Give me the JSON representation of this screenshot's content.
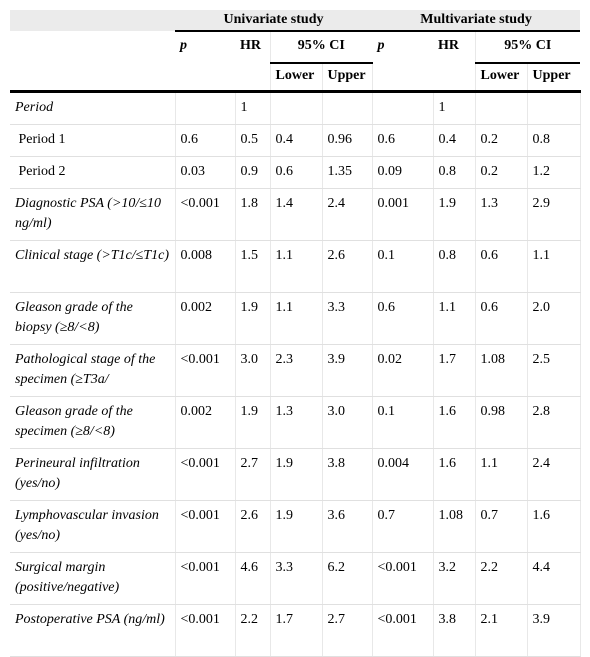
{
  "header": {
    "groups": [
      "Univariate study",
      "Multivariate study"
    ],
    "p": "p",
    "hr": "HR",
    "ci": "95% CI",
    "lower": "Lower",
    "upper": "Upper"
  },
  "rows": [
    {
      "italic": true,
      "cells": [
        "Period",
        null,
        "1",
        null,
        null,
        null,
        "1",
        null,
        null
      ]
    },
    {
      "italic": false,
      "cells": [
        " Period 1",
        "0.6",
        "0.5",
        "0.4",
        "0.96",
        "0.6",
        "0.4",
        "0.2",
        "0.8"
      ]
    },
    {
      "italic": false,
      "cells": [
        " Period 2",
        "0.03",
        "0.9",
        "0.6",
        "1.35",
        "0.09",
        "0.8",
        "0.2",
        "1.2"
      ]
    },
    {
      "italic": true,
      "cells": [
        "Diagnostic PSA (>10/≤10 ng/ml)",
        "<0.001",
        "1.8",
        "1.4",
        "2.4",
        "0.001",
        "1.9",
        "1.3",
        "2.9"
      ]
    },
    {
      "italic": true,
      "cells": [
        "Clinical stage (>T1c/≤T1c)",
        "0.008",
        "1.5",
        "1.1",
        "2.6",
        "0.1",
        "0.8",
        "0.6",
        "1.1"
      ]
    },
    {
      "italic": true,
      "cells": [
        "Gleason grade of the biopsy (≥8/<8)",
        "0.002",
        "1.9",
        "1.1",
        "3.3",
        "0.6",
        "1.1",
        "0.6",
        "2.0"
      ]
    },
    {
      "italic": true,
      "cells": [
        "Pathological stage of the specimen (≥T3a/",
        "<0.001",
        "3.0",
        "2.3",
        "3.9",
        "0.02",
        "1.7",
        "1.08",
        "2.5"
      ]
    },
    {
      "italic": true,
      "cells": [
        "Gleason grade of the specimen (≥8/<8)",
        "0.002",
        "1.9",
        "1.3",
        "3.0",
        "0.1",
        "1.6",
        "0.98",
        "2.8"
      ]
    },
    {
      "italic": true,
      "cells": [
        "Perineural infiltration (yes/no)",
        "<0.001",
        "2.7",
        "1.9",
        "3.8",
        "0.004",
        "1.6",
        "1.1",
        "2.4"
      ]
    },
    {
      "italic": true,
      "cells": [
        "Lymphovascular invasion (yes/no)",
        "<0.001",
        "2.6",
        "1.9",
        "3.6",
        "0.7",
        "1.08",
        "0.7",
        "1.6"
      ]
    },
    {
      "italic": true,
      "cells": [
        "Surgical margin (positive/negative)",
        "<0.001",
        "4.6",
        "3.3",
        "6.2",
        "<0.001",
        "3.2",
        "2.2",
        "4.4"
      ]
    },
    {
      "italic": true,
      "cells": [
        "Postoperative PSA (ng/ml)",
        "<0.001",
        "2.2",
        "1.7",
        "2.7",
        "<0.001",
        "3.8",
        "2.1",
        "3.9"
      ]
    }
  ]
}
